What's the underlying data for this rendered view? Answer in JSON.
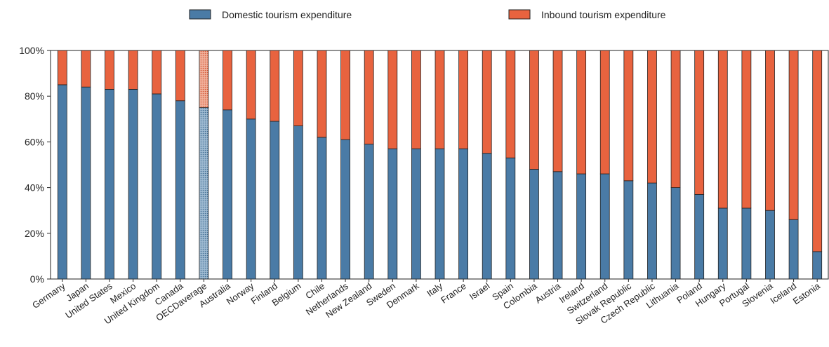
{
  "chart_data": {
    "type": "bar",
    "stacked": true,
    "y_unit": "%",
    "ylim": [
      0,
      100
    ],
    "yticks": [
      "0%",
      "20%",
      "40%",
      "60%",
      "80%",
      "100%"
    ],
    "grid": false,
    "legend_position": "top",
    "categories": [
      "Germany",
      "Japan",
      "United States",
      "Mexico",
      "United Kingdom",
      "Canada",
      "OECDaverage",
      "Australia",
      "Norway",
      "Finland",
      "Belgium",
      "Chile",
      "Netherlands",
      "New Zealand",
      "Sweden",
      "Denmark",
      "Italy",
      "France",
      "Israel",
      "Spain",
      "Colombia",
      "Austria",
      "Ireland",
      "Switzerland",
      "Slovak Republic",
      "Czech Republic",
      "Lithuania",
      "Poland",
      "Hungary",
      "Portugal",
      "Slovenia",
      "Iceland",
      "Estonia"
    ],
    "highlight_category": "OECDaverage",
    "series": [
      {
        "name": "Domestic tourism expenditure",
        "color": "#4a7ba6",
        "values": [
          85,
          84,
          83,
          83,
          81,
          78,
          75,
          74,
          70,
          69,
          67,
          62,
          61,
          59,
          57,
          57,
          57,
          57,
          55,
          53,
          48,
          47,
          46,
          46,
          43,
          42,
          40,
          37,
          31,
          31,
          30,
          26,
          12
        ]
      },
      {
        "name": "Inbound tourism expenditure",
        "color": "#e8633f",
        "values": [
          15,
          16,
          17,
          17,
          19,
          22,
          25,
          26,
          30,
          31,
          33,
          38,
          39,
          41,
          43,
          43,
          43,
          43,
          45,
          47,
          52,
          53,
          54,
          54,
          57,
          58,
          60,
          63,
          69,
          69,
          70,
          74,
          88
        ]
      }
    ]
  }
}
